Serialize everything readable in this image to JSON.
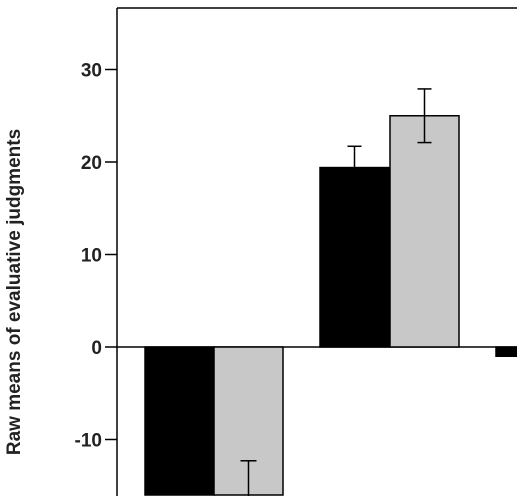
{
  "chart_data": {
    "type": "bar",
    "title": "",
    "ylabel": "Raw means of evaluative judgments",
    "xlabel": "",
    "ylim": [
      -16,
      37
    ],
    "yticks": [
      -10,
      0,
      10,
      20,
      30
    ],
    "grid": false,
    "legend": "none",
    "series_colors": [
      "#000000",
      "#c8c8c8",
      "#000000"
    ],
    "bars": [
      {
        "group": 1,
        "color": "#000000",
        "value": -16,
        "error": null
      },
      {
        "group": 1,
        "color": "#c8c8c8",
        "value": -16,
        "error": 3.4
      },
      {
        "group": 2,
        "color": "#000000",
        "value": 19.4,
        "error": 2.3
      },
      {
        "group": 2,
        "color": "#c8c8c8",
        "value": 25.0,
        "error": 2.9
      },
      {
        "group": 3,
        "color": "#000000",
        "value": -1.0,
        "error": null
      }
    ]
  }
}
